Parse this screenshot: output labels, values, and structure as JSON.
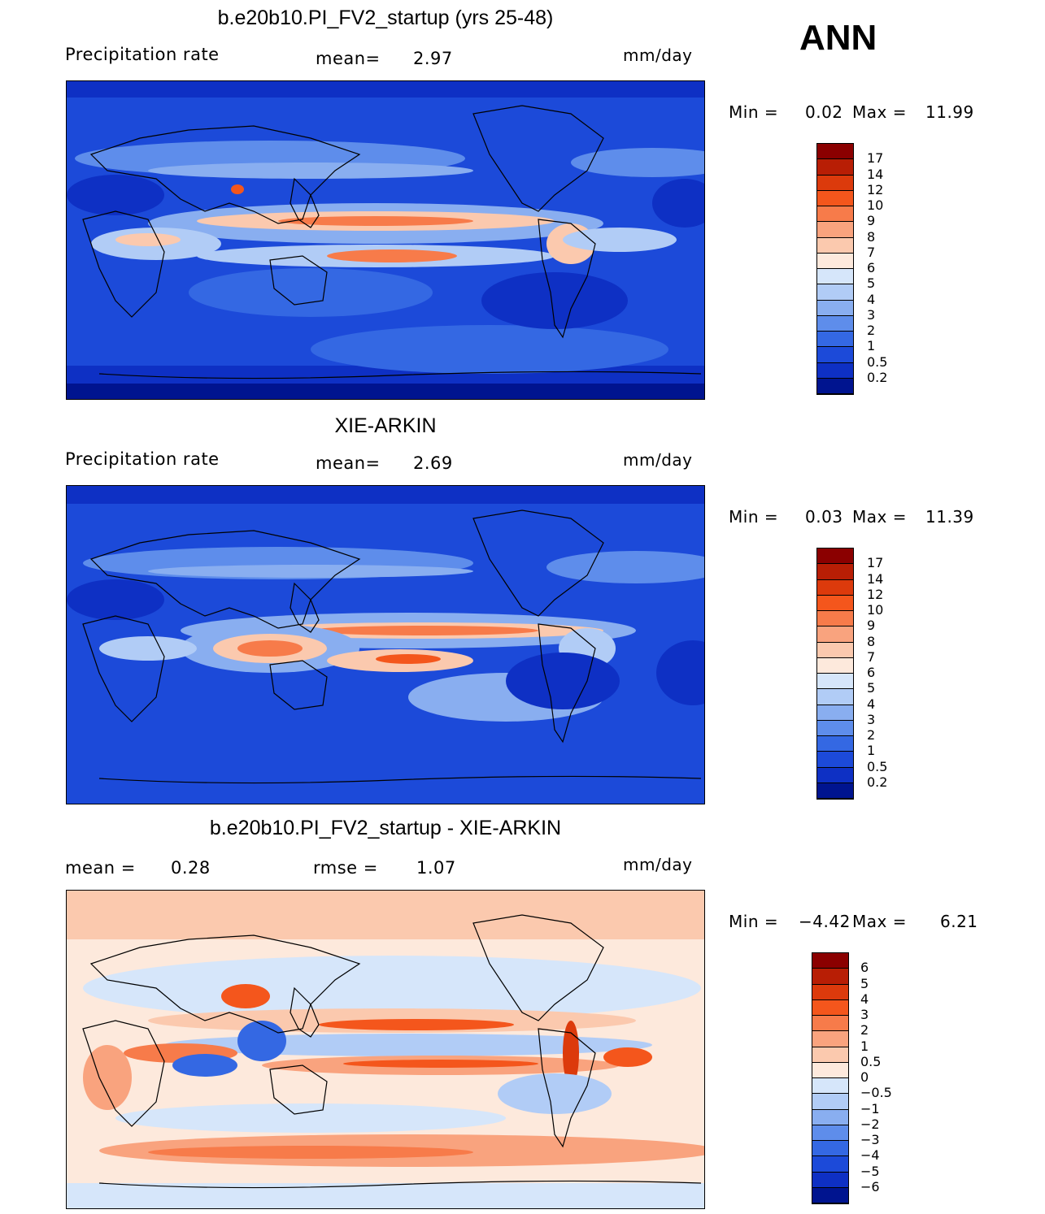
{
  "season": "ANN",
  "panels": [
    {
      "title": "b.e20b10.PI_FV2_startup (yrs 25-48)",
      "left_label": "Precipitation rate",
      "mid_label": "mean=",
      "mid_value": "2.97",
      "units": "mm/day",
      "minmax": {
        "min_label": "Min =",
        "min": "0.02",
        "max_label": "Max =",
        "max": "11.99"
      },
      "colorbar": {
        "levels": [
          "17",
          "14",
          "12",
          "10",
          "9",
          "8",
          "7",
          "6",
          "5",
          "4",
          "3",
          "2",
          "1",
          "0.5",
          "0.2"
        ],
        "colors": [
          "#8b0000",
          "#b81e05",
          "#dc3a0c",
          "#f4561c",
          "#f77b4a",
          "#f9a37e",
          "#fbc9ae",
          "#fde9dc",
          "#d6e6fa",
          "#b1ccf6",
          "#89aef0",
          "#5e8deb",
          "#3468e3",
          "#1c4ad9",
          "#0e30c4",
          "#00148f"
        ]
      }
    },
    {
      "title": "XIE-ARKIN",
      "left_label": "Precipitation rate",
      "mid_label": "mean=",
      "mid_value": "2.69",
      "units": "mm/day",
      "minmax": {
        "min_label": "Min =",
        "min": "0.03",
        "max_label": "Max =",
        "max": "11.39"
      },
      "colorbar": {
        "levels": [
          "17",
          "14",
          "12",
          "10",
          "9",
          "8",
          "7",
          "6",
          "5",
          "4",
          "3",
          "2",
          "1",
          "0.5",
          "0.2"
        ],
        "colors": [
          "#8b0000",
          "#b81e05",
          "#dc3a0c",
          "#f4561c",
          "#f77b4a",
          "#f9a37e",
          "#fbc9ae",
          "#fde9dc",
          "#d6e6fa",
          "#b1ccf6",
          "#89aef0",
          "#5e8deb",
          "#3468e3",
          "#1c4ad9",
          "#0e30c4",
          "#00148f"
        ]
      }
    },
    {
      "title": "b.e20b10.PI_FV2_startup - XIE-ARKIN",
      "left_label": "mean =",
      "left_value": "0.28",
      "mid_label": "rmse =",
      "mid_value": "1.07",
      "units": "mm/day",
      "minmax": {
        "min_label": "Min =",
        "min": "−4.42",
        "max_label": "Max =",
        "max": "6.21"
      },
      "colorbar": {
        "levels": [
          "6",
          "5",
          "4",
          "3",
          "2",
          "1",
          "0.5",
          "0",
          "−0.5",
          "−1",
          "−2",
          "−3",
          "−4",
          "−5",
          "−6"
        ],
        "colors": [
          "#8b0000",
          "#b81e05",
          "#dc3a0c",
          "#f4561c",
          "#f77b4a",
          "#f9a37e",
          "#fbc9ae",
          "#fde9dc",
          "#d6e6fa",
          "#b1ccf6",
          "#89aef0",
          "#5e8deb",
          "#3468e3",
          "#1c4ad9",
          "#0e30c4",
          "#00148f"
        ]
      }
    }
  ]
}
